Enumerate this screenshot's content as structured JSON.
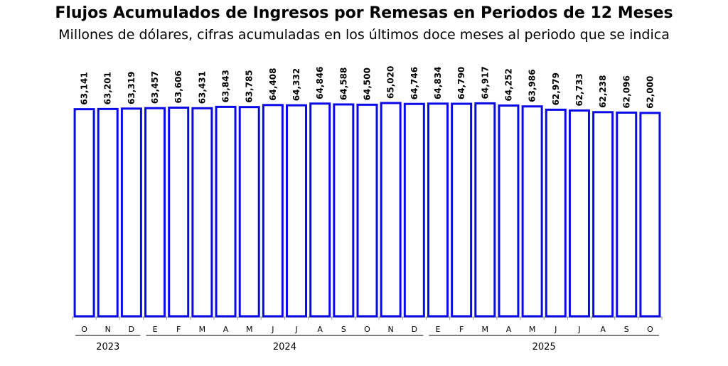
{
  "chart_data": {
    "type": "bar",
    "title": "Flujos Acumulados de Ingresos por Remesas en Periodos de 12 Meses",
    "subtitle": "Millones de dólares, cifras acumuladas en los últimos doce meses al periodo que se indica",
    "xlabel": "",
    "ylabel": "",
    "ylim": [
      0,
      79100
    ],
    "grid": false,
    "categories": [
      "O",
      "N",
      "D",
      "E",
      "F",
      "M",
      "A",
      "M",
      "J",
      "J",
      "A",
      "S",
      "O",
      "N",
      "D",
      "E",
      "F",
      "M",
      "A",
      "M",
      "J",
      "J",
      "A",
      "S",
      "O"
    ],
    "values": [
      63141,
      63201,
      63319,
      63457,
      63606,
      63431,
      63843,
      63785,
      64408,
      64332,
      64846,
      64588,
      64500,
      65020,
      64746,
      64834,
      64790,
      64917,
      64252,
      63986,
      62979,
      62733,
      62238,
      62096,
      62000
    ],
    "data_labels": [
      "63,141",
      "63,201",
      "63,319",
      "63,457",
      "63,606",
      "63,431",
      "63,843",
      "63,785",
      "64,408",
      "64,332",
      "64,846",
      "64,588",
      "64,500",
      "65,020",
      "64,746",
      "64,834",
      "64,790",
      "64,917",
      "64,252",
      "63,986",
      "62,979",
      "62,733",
      "62,238",
      "62,096",
      "62,000"
    ],
    "year_groups": [
      {
        "label": "2023",
        "count": 3
      },
      {
        "label": "2024",
        "count": 12
      },
      {
        "label": "2025",
        "count": 10
      }
    ],
    "colors": {
      "bar_outline": "#0a0ae6",
      "bar_fill": "#ffffff",
      "axis": "#999999",
      "text": "#000000"
    }
  }
}
